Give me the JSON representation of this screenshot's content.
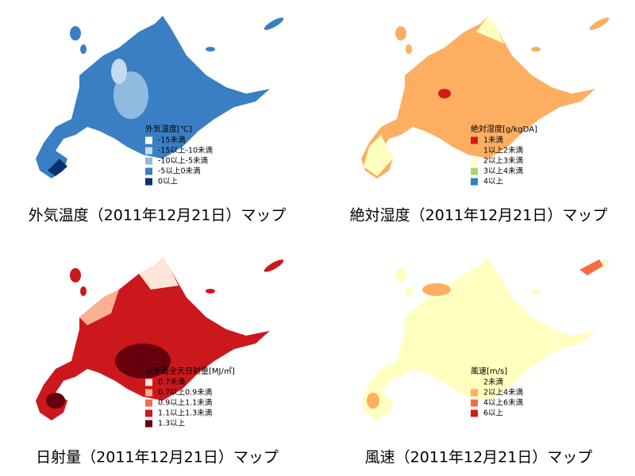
{
  "panels": [
    {
      "caption": "外気温度（2011年12月21日）マップ",
      "legend_title": "外気温度[℃]",
      "legend": [
        {
          "label": "-15未満",
          "color": "#ffffff"
        },
        {
          "label": "-15以上-10未満",
          "color": "#c6dbef"
        },
        {
          "label": "-10以上-5未満",
          "color": "#8fbbe0"
        },
        {
          "label": "-5以上0未満",
          "color": "#3a7fc4"
        },
        {
          "label": "0以上",
          "color": "#0b2f6e"
        }
      ]
    },
    {
      "caption": "絶対湿度（2011年12月21日）マップ",
      "legend_title": "絶対湿度[g/kgDA]",
      "legend": [
        {
          "label": "1未満",
          "color": "#d7191c"
        },
        {
          "label": "1以上2未満",
          "color": "#fdae61"
        },
        {
          "label": "2以上3未満",
          "color": "#ffffbf"
        },
        {
          "label": "3以上4未満",
          "color": "#a6d96a"
        },
        {
          "label": "4以上",
          "color": "#2b83ba"
        }
      ]
    },
    {
      "caption": "日射量（2011年12月21日）マップ",
      "legend_title": "水平面全天日射量[MJ/㎡]",
      "legend": [
        {
          "label": "0.7未満",
          "color": "#fee5d9"
        },
        {
          "label": "0.7以上0.9未満",
          "color": "#fcae91"
        },
        {
          "label": "0.9以上1.1未満",
          "color": "#fb6a4a"
        },
        {
          "label": "1.1以上1.3未満",
          "color": "#cb181d"
        },
        {
          "label": "1.3以上",
          "color": "#67000d"
        }
      ]
    },
    {
      "caption": "風速（2011年12月21日）マップ",
      "legend_title": "風速[m/s]",
      "legend": [
        {
          "label": "2未満",
          "color": "#ffffbf"
        },
        {
          "label": "2以上4未満",
          "color": "#fdae61"
        },
        {
          "label": "4以上6未満",
          "color": "#f46d43"
        },
        {
          "label": "6以上",
          "color": "#d7191c"
        }
      ]
    }
  ]
}
